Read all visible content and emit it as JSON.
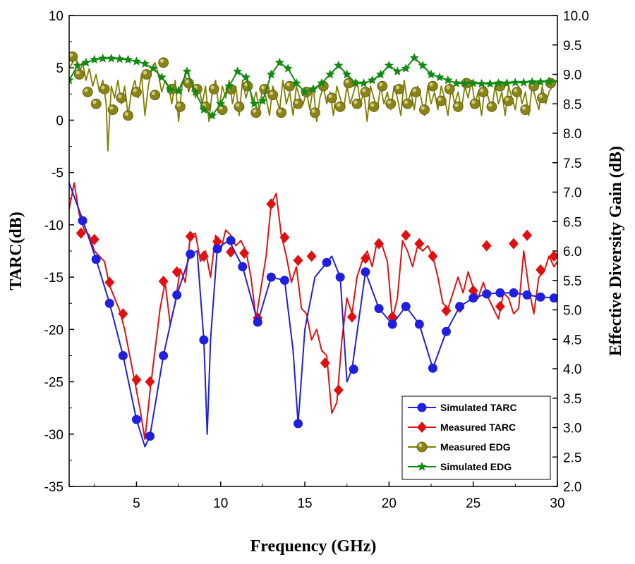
{
  "chart_data": {
    "type": "line",
    "xlabel": "Frequency (GHz)",
    "ylabel_left": "TARC(dB)",
    "ylabel_right": "Effective Diversity Gain (dB)",
    "xlim": [
      1,
      30
    ],
    "ylim_left": [
      -35,
      10
    ],
    "ylim_right": [
      2.0,
      10.0
    ],
    "x_ticks": [
      5,
      10,
      15,
      20,
      25,
      30
    ],
    "y_ticks_left": [
      10,
      5,
      0,
      -5,
      -10,
      -15,
      -20,
      -25,
      -30,
      -35
    ],
    "y_ticks_right": [
      "10.0",
      "9.5",
      "9.0",
      "8.5",
      "8.0",
      "7.5",
      "7.0",
      "6.5",
      "6.0",
      "5.5",
      "5.0",
      "4.5",
      "4.0",
      "3.5",
      "3.0",
      "2.5",
      "2.0"
    ],
    "legend_position": "bottom-right",
    "series": [
      {
        "name": "Simulated TARC",
        "axis": "left",
        "color": "#1f1fe0",
        "marker": "circle",
        "x": [
          1.0,
          1.8,
          2.6,
          3.4,
          4.2,
          5.0,
          5.5,
          5.8,
          6.6,
          7.4,
          8.2,
          8.6,
          9.0,
          9.2,
          9.4,
          9.8,
          10.5,
          11.3,
          12.2,
          13.0,
          13.8,
          14.3,
          14.6,
          15.0,
          15.6,
          16.3,
          16.6,
          17.1,
          17.5,
          17.8,
          18.6,
          19.4,
          20.2,
          21.0,
          21.8,
          22.6,
          23.4,
          24.2,
          25.0,
          25.8,
          26.6,
          27.4,
          28.2,
          29.0,
          30.0
        ],
        "y": [
          -6.0,
          -9.5,
          -13.3,
          -17.5,
          -22.5,
          -28.6,
          -31.2,
          -30.2,
          -22.5,
          -16.7,
          -12.8,
          -12.5,
          -21.0,
          -30.0,
          -21.0,
          -12.2,
          -11.5,
          -14.0,
          -19.3,
          -15.0,
          -15.3,
          -22.0,
          -29.0,
          -20.0,
          -15.0,
          -13.6,
          -13.0,
          -15.0,
          -25.0,
          -23.8,
          -14.5,
          -18.0,
          -19.5,
          -17.8,
          -19.5,
          -23.7,
          -20.2,
          -17.8,
          -17.0,
          -16.6,
          -16.5,
          -16.5,
          -16.7,
          -16.9,
          -17.0
        ],
        "markers_x": [
          1.8,
          2.6,
          3.4,
          4.2,
          5.0,
          5.8,
          6.6,
          7.4,
          8.2,
          9.0,
          9.8,
          10.6,
          11.3,
          12.2,
          13.0,
          13.8,
          14.6,
          16.3,
          17.1,
          17.9,
          18.6,
          19.4,
          20.2,
          21.0,
          21.8,
          22.6,
          23.4,
          24.2,
          25.0,
          25.8,
          26.6,
          27.4,
          28.2,
          29.0,
          29.8
        ],
        "markers_y": [
          -9.6,
          -13.3,
          -17.5,
          -22.5,
          -28.6,
          -30.2,
          -22.5,
          -16.7,
          -12.8,
          -21.0,
          -12.3,
          -11.5,
          -14.0,
          -19.3,
          -15.0,
          -15.3,
          -29.0,
          -13.6,
          -15.0,
          -23.8,
          -14.5,
          -18.0,
          -19.5,
          -17.8,
          -19.5,
          -23.7,
          -20.2,
          -17.8,
          -17.0,
          -16.6,
          -16.5,
          -16.5,
          -16.7,
          -16.9,
          -17.0
        ]
      },
      {
        "name": "Measured TARC",
        "axis": "left",
        "color": "#e01010",
        "marker": "diamond",
        "x": [
          1.0,
          1.3,
          1.6,
          1.9,
          2.2,
          2.5,
          2.8,
          3.1,
          3.4,
          3.7,
          4.0,
          4.3,
          4.6,
          4.9,
          5.2,
          5.5,
          5.8,
          6.1,
          6.4,
          6.7,
          7.0,
          7.3,
          7.6,
          7.9,
          8.2,
          8.5,
          8.8,
          9.1,
          9.4,
          9.7,
          10.0,
          10.3,
          10.6,
          10.9,
          11.2,
          11.5,
          11.8,
          12.1,
          12.4,
          12.7,
          13.0,
          13.3,
          13.6,
          13.9,
          14.2,
          14.5,
          14.8,
          15.1,
          15.4,
          15.7,
          16.0,
          16.3,
          16.6,
          16.9,
          17.2,
          17.5,
          17.8,
          18.1,
          18.4,
          18.7,
          19.0,
          19.3,
          19.6,
          19.9,
          20.2,
          20.5,
          20.8,
          21.1,
          21.4,
          21.7,
          22.0,
          22.3,
          22.6,
          22.9,
          23.2,
          23.5,
          23.8,
          24.1,
          24.4,
          24.7,
          25.0,
          25.3,
          25.6,
          25.9,
          26.2,
          26.5,
          26.8,
          27.1,
          27.4,
          27.7,
          28.0,
          28.3,
          28.6,
          28.9,
          29.2,
          29.5,
          29.8,
          30.0
        ],
        "y": [
          -8.5,
          -6.0,
          -9.0,
          -10.5,
          -11.0,
          -12.5,
          -13.0,
          -13.5,
          -15.8,
          -17.0,
          -18.2,
          -20.0,
          -22.5,
          -25.0,
          -27.5,
          -30.5,
          -26.0,
          -22.0,
          -18.0,
          -15.5,
          -19.5,
          -17.5,
          -14.2,
          -15.5,
          -11.0,
          -10.8,
          -13.5,
          -12.5,
          -15.0,
          -11.0,
          -12.5,
          -10.5,
          -11.0,
          -12.0,
          -11.5,
          -12.5,
          -15.0,
          -19.0,
          -16.0,
          -13.0,
          -8.0,
          -7.0,
          -11.0,
          -13.0,
          -15.5,
          -14.0,
          -18.0,
          -18.5,
          -21.0,
          -20.0,
          -22.0,
          -22.5,
          -28.0,
          -27.0,
          -21.0,
          -17.0,
          -18.5,
          -15.0,
          -13.5,
          -12.5,
          -14.0,
          -11.5,
          -12.0,
          -13.5,
          -19.0,
          -17.0,
          -11.5,
          -12.5,
          -14.0,
          -12.0,
          -12.5,
          -12.0,
          -13.0,
          -15.0,
          -17.5,
          -18.0,
          -16.5,
          -15.0,
          -16.5,
          -14.5,
          -16.0,
          -17.0,
          -15.5,
          -17.0,
          -18.0,
          -19.0,
          -16.5,
          -17.0,
          -18.5,
          -18.0,
          -12.5,
          -16.0,
          -18.5,
          -15.0,
          -14.5,
          -13.0,
          -14.0,
          -13.5
        ],
        "markers_x": [
          1.7,
          2.5,
          3.4,
          4.2,
          5.0,
          5.8,
          6.6,
          7.4,
          8.2,
          9.0,
          9.8,
          10.6,
          11.4,
          12.2,
          13.0,
          13.8,
          14.6,
          15.4,
          16.2,
          17.0,
          17.8,
          18.6,
          19.4,
          20.2,
          21.0,
          21.8,
          22.6,
          23.4,
          24.2,
          25.0,
          25.8,
          26.6,
          27.4,
          28.2,
          29.0,
          29.8
        ],
        "markers_y": [
          -10.8,
          -11.4,
          -15.5,
          -18.5,
          -24.8,
          -25.0,
          -15.4,
          -14.5,
          -11.1,
          -13.0,
          -11.6,
          -12.6,
          -12.7,
          -18.9,
          -8.0,
          -11.2,
          -13.4,
          -13.0,
          -23.2,
          -25.8,
          -18.8,
          -13.2,
          -11.8,
          -18.8,
          -11.0,
          -11.8,
          -13.0,
          -18.2,
          -17.9,
          -16.3,
          -12.0,
          -17.8,
          -11.8,
          -11.0,
          -14.3,
          -13.0
        ]
      },
      {
        "name": "Measured EDG",
        "axis": "right",
        "color": "#7f7f00",
        "marker": "circle",
        "x": [
          1.0,
          1.2,
          1.4,
          1.6,
          1.8,
          2.0,
          2.2,
          2.4,
          2.6,
          2.8,
          3.0,
          3.2,
          3.3,
          3.5,
          3.7,
          3.9,
          4.1,
          4.3,
          4.5,
          4.7,
          4.9,
          5.1,
          5.3,
          5.5,
          5.7,
          5.9,
          6.1,
          6.3,
          6.5,
          6.7,
          6.9,
          7.1,
          7.3,
          7.5,
          7.7,
          7.9,
          8.1,
          8.3,
          8.5,
          8.7,
          8.9,
          9.1,
          9.3,
          9.5,
          9.7,
          9.9,
          10.1,
          10.3,
          10.5,
          10.7,
          10.9,
          11.1,
          11.3,
          11.5,
          11.7,
          11.9,
          12.1,
          12.3,
          12.5,
          12.7,
          12.9,
          13.1,
          13.3,
          13.5,
          13.7,
          13.9,
          14.1,
          14.3,
          14.5,
          14.7,
          14.9,
          15.1,
          15.3,
          15.5,
          15.7,
          15.9,
          16.1,
          16.3,
          16.5,
          16.7,
          16.9,
          17.1,
          17.3,
          17.5,
          17.7,
          17.9,
          18.1,
          18.3,
          18.5,
          18.7,
          18.9,
          19.1,
          19.3,
          19.5,
          19.7,
          19.9,
          20.1,
          20.3,
          20.5,
          20.7,
          20.9,
          21.1,
          21.3,
          21.5,
          21.7,
          21.9,
          22.1,
          22.3,
          22.5,
          22.7,
          22.9,
          23.1,
          23.3,
          23.5,
          23.7,
          23.9,
          24.1,
          24.3,
          24.5,
          24.7,
          24.9,
          25.1,
          25.3,
          25.5,
          25.7,
          25.9,
          26.1,
          26.3,
          26.5,
          26.7,
          26.9,
          27.1,
          27.3,
          27.5,
          27.7,
          27.9,
          28.1,
          28.3,
          28.5,
          28.7,
          28.9,
          29.1,
          29.3,
          29.5,
          29.7,
          30.0
        ],
        "y": [
          9.1,
          9.2,
          9.3,
          9.0,
          9.2,
          8.9,
          9.1,
          8.8,
          9.0,
          8.7,
          8.9,
          8.5,
          7.7,
          8.8,
          8.6,
          8.9,
          8.5,
          8.8,
          8.3,
          8.7,
          8.9,
          8.6,
          9.0,
          8.3,
          8.8,
          9.1,
          9.2,
          9.0,
          8.7,
          8.9,
          8.8,
          8.5,
          8.9,
          8.2,
          8.8,
          9.0,
          8.7,
          8.9,
          8.6,
          8.8,
          8.5,
          8.8,
          8.2,
          8.7,
          8.9,
          8.4,
          8.8,
          8.6,
          8.9,
          8.5,
          8.8,
          8.3,
          8.9,
          8.6,
          8.8,
          8.5,
          8.7,
          8.4,
          8.8,
          8.6,
          8.3,
          8.8,
          8.6,
          8.4,
          8.9,
          8.5,
          8.7,
          8.3,
          8.8,
          8.6,
          8.5,
          8.7,
          8.4,
          8.8,
          8.2,
          8.6,
          8.8,
          8.5,
          8.7,
          8.3,
          8.8,
          8.6,
          8.4,
          8.8,
          8.5,
          8.7,
          8.9,
          8.5,
          8.7,
          8.2,
          8.8,
          8.6,
          8.4,
          8.8,
          8.5,
          8.7,
          8.4,
          8.8,
          8.6,
          8.3,
          8.9,
          8.5,
          8.7,
          8.4,
          8.8,
          8.6,
          8.3,
          8.8,
          8.5,
          8.7,
          8.4,
          8.8,
          8.6,
          8.3,
          8.8,
          8.5,
          8.7,
          8.4,
          8.8,
          8.6,
          8.9,
          8.5,
          8.7,
          8.3,
          8.8,
          8.6,
          8.4,
          8.8,
          8.5,
          8.7,
          8.3,
          8.8,
          8.6,
          8.4,
          8.8,
          8.5,
          8.7,
          8.3,
          8.8,
          8.6,
          8.4,
          8.8,
          8.5,
          8.7,
          8.8,
          8.9
        ],
        "markers_x": [
          1.2,
          1.6,
          2.1,
          2.6,
          3.1,
          3.6,
          4.1,
          4.5,
          5.0,
          5.6,
          6.1,
          6.6,
          7.1,
          7.6,
          8.1,
          8.6,
          9.1,
          9.6,
          10.1,
          10.6,
          11.1,
          11.6,
          12.1,
          12.6,
          13.1,
          13.6,
          14.1,
          14.6,
          15.1,
          15.6,
          16.1,
          16.6,
          17.1,
          17.6,
          18.1,
          18.6,
          19.1,
          19.6,
          20.1,
          20.6,
          21.1,
          21.6,
          22.1,
          22.6,
          23.1,
          23.6,
          24.1,
          24.6,
          25.1,
          25.6,
          26.1,
          26.6,
          27.1,
          27.6,
          28.1,
          28.6,
          29.1,
          29.6
        ],
        "markers_y": [
          9.3,
          9.0,
          8.7,
          8.5,
          8.75,
          8.4,
          8.6,
          8.3,
          8.7,
          9.0,
          8.65,
          9.2,
          8.75,
          8.45,
          8.85,
          8.75,
          8.45,
          8.75,
          8.4,
          8.75,
          8.45,
          8.8,
          8.35,
          8.75,
          8.65,
          8.35,
          8.8,
          8.5,
          8.7,
          8.35,
          8.8,
          8.6,
          8.45,
          8.85,
          8.5,
          8.7,
          8.45,
          8.8,
          8.5,
          8.75,
          8.5,
          8.7,
          8.4,
          8.8,
          8.55,
          8.75,
          8.45,
          8.85,
          8.5,
          8.7,
          8.45,
          8.8,
          8.55,
          8.7,
          8.4,
          8.8,
          8.6,
          8.85
        ]
      },
      {
        "name": "Simulated EDG",
        "axis": "right",
        "color": "#138a13",
        "marker": "star",
        "x": [
          1.0,
          1.5,
          2.0,
          2.5,
          3.0,
          3.5,
          4.0,
          4.5,
          5.0,
          5.5,
          6.0,
          6.5,
          7.0,
          7.5,
          8.0,
          8.5,
          9.0,
          9.5,
          10.0,
          10.5,
          11.0,
          11.5,
          12.0,
          12.5,
          13.0,
          13.5,
          14.0,
          14.5,
          15.0,
          15.5,
          16.0,
          16.5,
          17.0,
          17.5,
          18.0,
          18.5,
          19.0,
          19.5,
          20.0,
          20.5,
          21.0,
          21.5,
          22.0,
          22.5,
          23.0,
          23.5,
          24.0,
          24.5,
          25.0,
          25.5,
          26.0,
          26.5,
          27.0,
          27.5,
          28.0,
          28.5,
          29.0,
          29.5,
          30.0
        ],
        "y": [
          8.9,
          9.15,
          9.2,
          9.25,
          9.27,
          9.27,
          9.26,
          9.25,
          9.22,
          9.18,
          9.1,
          8.95,
          8.75,
          8.72,
          9.05,
          8.7,
          8.4,
          8.3,
          8.5,
          8.8,
          9.05,
          8.95,
          8.5,
          8.55,
          9.0,
          9.2,
          9.1,
          8.85,
          8.7,
          8.75,
          8.85,
          9.0,
          9.15,
          9.0,
          8.85,
          8.85,
          8.9,
          9.0,
          9.15,
          9.05,
          9.1,
          9.28,
          9.15,
          9.0,
          8.95,
          8.9,
          8.85,
          8.85,
          8.85,
          8.84,
          8.84,
          8.85,
          8.85,
          8.86,
          8.86,
          8.87,
          8.87,
          8.88,
          8.89
        ],
        "markers_x": [
          1.0,
          1.5,
          2.0,
          2.5,
          3.0,
          3.5,
          4.0,
          4.5,
          5.0,
          5.5,
          6.0,
          6.5,
          7.0,
          7.5,
          8.0,
          8.5,
          9.0,
          9.5,
          10.0,
          10.5,
          11.0,
          11.5,
          12.0,
          12.5,
          13.0,
          13.5,
          14.0,
          14.5,
          15.0,
          15.5,
          16.0,
          16.5,
          17.0,
          17.5,
          18.0,
          18.5,
          19.0,
          19.5,
          20.0,
          20.5,
          21.0,
          21.5,
          22.0,
          22.5,
          23.0,
          23.5,
          24.0,
          24.5,
          25.0,
          25.5,
          26.0,
          26.5,
          27.0,
          27.5,
          28.0,
          28.5,
          29.0,
          29.5
        ],
        "markers_y": [
          8.9,
          9.15,
          9.2,
          9.25,
          9.27,
          9.27,
          9.26,
          9.25,
          9.22,
          9.18,
          9.1,
          8.95,
          8.75,
          8.72,
          9.05,
          8.7,
          8.4,
          8.3,
          8.5,
          8.8,
          9.05,
          8.95,
          8.5,
          8.55,
          9.0,
          9.2,
          9.1,
          8.85,
          8.7,
          8.75,
          8.85,
          9.0,
          9.15,
          9.0,
          8.85,
          8.85,
          8.9,
          9.0,
          9.15,
          9.05,
          9.1,
          9.28,
          9.15,
          9.0,
          8.95,
          8.9,
          8.85,
          8.85,
          8.85,
          8.84,
          8.84,
          8.85,
          8.85,
          8.86,
          8.86,
          8.87,
          8.87,
          8.88
        ]
      }
    ]
  }
}
